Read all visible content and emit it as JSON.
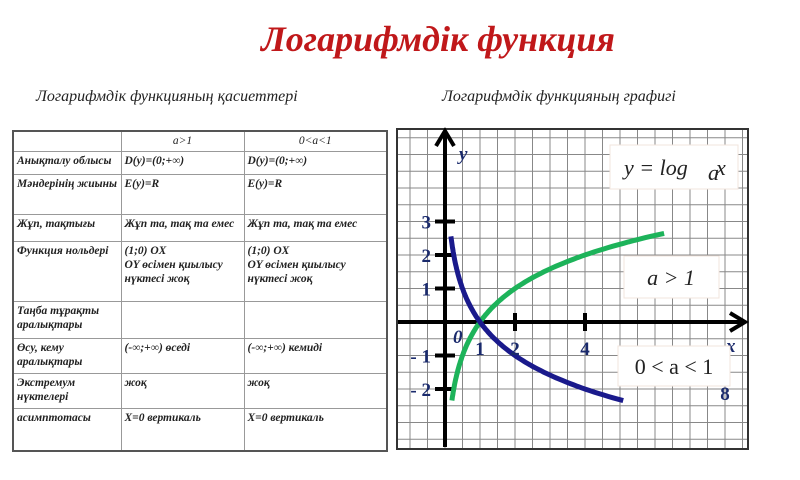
{
  "title": "Логарифмдік функция",
  "left_subtitle": "Логарифмдік функцияның қасиеттері",
  "right_subtitle": "Логарифмдік функцияның графигі",
  "table": {
    "headers": [
      "",
      "a>1",
      "0<a<1"
    ],
    "rows": [
      [
        "Анықталу облысы",
        "D(y)=(0;+∞)",
        "D(y)=(0;+∞)"
      ],
      [
        "Мәндерінің жиыны",
        "E(y)=R",
        "E(y)=R"
      ],
      [
        "Жұп, тақтығы",
        "Жұп та, тақ та емес",
        "Жұп та, тақ та емес"
      ],
      [
        "Функция нольдері",
        "(1;0) OX\nOY өсімен қиылысу нүктесі жоқ",
        "(1;0) OX\nOY өсімен қиылысу нүктесі жоқ"
      ],
      [
        "Таңба тұрақты аралықтары",
        "",
        ""
      ],
      [
        "Өсу, кему аралықтары",
        "(-∞;+∞) өседі",
        "(-∞;+∞) кемиді"
      ],
      [
        "Экстремум нүктелері",
        "жоқ",
        "жоқ"
      ],
      [
        "асимптотасы",
        "X=0 вертикаль",
        "X=0 вертикаль"
      ]
    ]
  },
  "chart_data": {
    "type": "line",
    "xlabel": "x",
    "ylabel": "y",
    "origin_label": "0",
    "x_ticks": [
      "1",
      "2",
      "4",
      "8"
    ],
    "y_ticks": [
      "3",
      "2",
      "1",
      "- 1",
      "- 2"
    ],
    "formula": "y = log_a x",
    "series": [
      {
        "name": "a > 1",
        "base": 2,
        "color": "#1db35a"
      },
      {
        "name": "0 < a < 1",
        "base": 0.5,
        "color": "#1a1a8c"
      }
    ],
    "grid": true
  }
}
